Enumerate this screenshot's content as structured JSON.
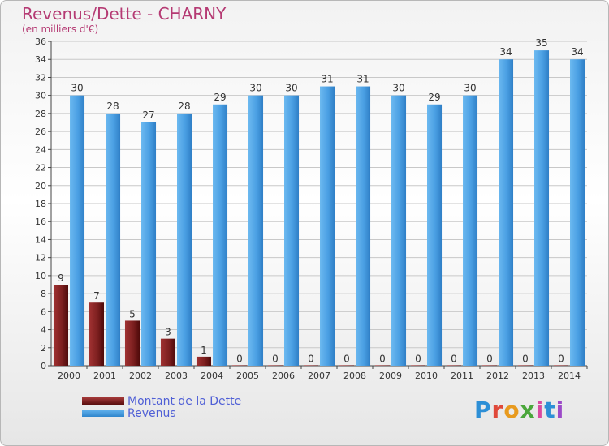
{
  "header": {
    "title": "Revenus/Dette - CHARNY",
    "subtitle": "(en milliers d'€)"
  },
  "logo": {
    "text": "Proxiti",
    "colors": [
      "#2d8fd6",
      "#e0493a",
      "#e89a1e",
      "#4aa63a",
      "#d94aa0",
      "#2d8fd6",
      "#9c4ac8"
    ]
  },
  "colors": {
    "debt": "#7d1f1f",
    "revenue": "#4a9fe3",
    "axis_text": "#333333",
    "grid": "#c8c8c8"
  },
  "chart_data": {
    "type": "bar",
    "title": "Revenus/Dette - CHARNY",
    "subtitle": "(en milliers d'€)",
    "categories": [
      "2000",
      "2001",
      "2002",
      "2003",
      "2004",
      "2005",
      "2006",
      "2007",
      "2008",
      "2009",
      "2010",
      "2011",
      "2012",
      "2013",
      "2014"
    ],
    "series": [
      {
        "name": "Montant de la Dette",
        "values": [
          9,
          7,
          5,
          3,
          1,
          0,
          0,
          0,
          0,
          0,
          0,
          0,
          0,
          0,
          0
        ]
      },
      {
        "name": "Revenus",
        "values": [
          30,
          28,
          27,
          28,
          29,
          30,
          30,
          31,
          31,
          30,
          29,
          30,
          34,
          35,
          34
        ]
      }
    ],
    "ylim": [
      0,
      36
    ],
    "yticks": [
      "0",
      "2",
      "4",
      "6",
      "8",
      "10",
      "12",
      "14",
      "16",
      "18",
      "20",
      "22",
      "24",
      "26",
      "28",
      "30",
      "32",
      "34",
      "36"
    ],
    "grid": true,
    "legend": "bottom-left"
  }
}
